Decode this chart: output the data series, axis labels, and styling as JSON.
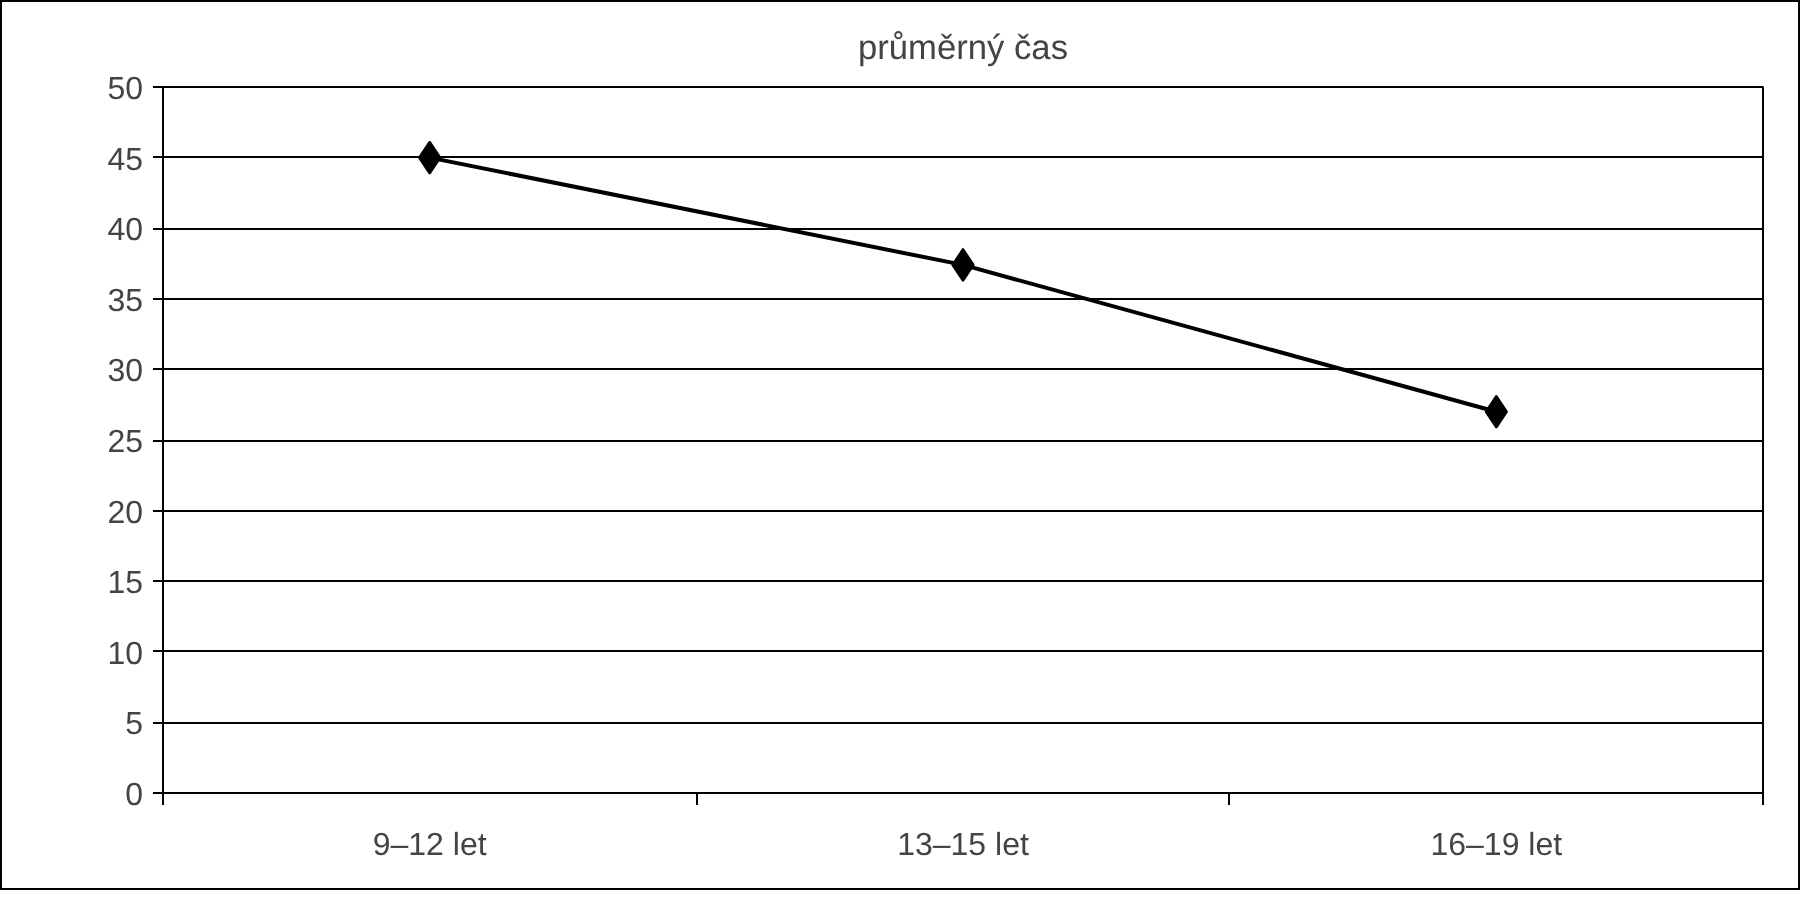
{
  "chart_data": {
    "type": "line",
    "title": "průměrný čas",
    "categories": [
      "9–12 let",
      "13–15 let",
      "16–19 let"
    ],
    "series": [
      {
        "color": "#000000",
        "values": [
          45,
          37.4,
          27
        ]
      }
    ],
    "ylim": [
      0,
      50
    ],
    "yticks": [
      0,
      5,
      10,
      15,
      20,
      25,
      30,
      35,
      40,
      45,
      50
    ],
    "grid": "y",
    "marker": "diamond",
    "line_style": "solid"
  }
}
